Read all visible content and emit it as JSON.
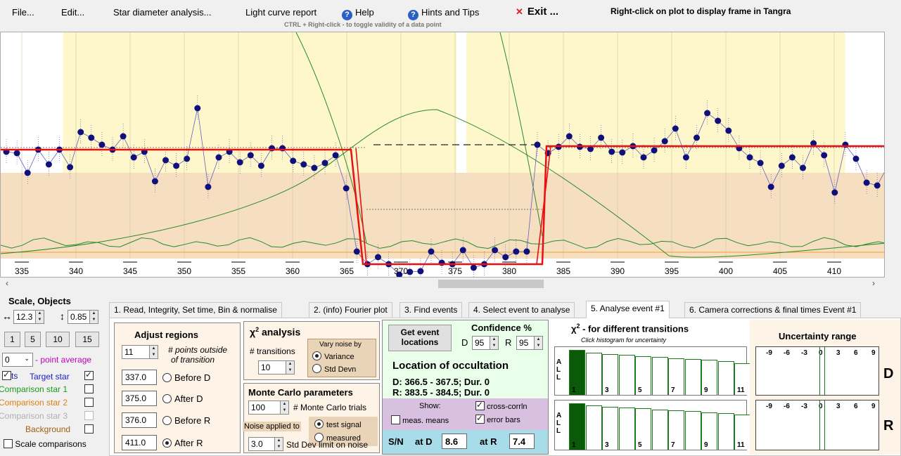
{
  "menu": {
    "file": "File...",
    "edit": "Edit...",
    "star_diameter": "Star diameter analysis...",
    "light_curve": "Light curve report",
    "help": "Help",
    "hints": "Hints and Tips",
    "exit_mark": "✕",
    "exit": "Exit ...",
    "right_click_note": "Right-click on plot to display frame in Tangra",
    "ctrl_note": "CTRL + Right-click  -  to toggle validity of a data point"
  },
  "plot": {
    "x_ticks": [
      "335",
      "340",
      "345",
      "350",
      "355",
      "360",
      "365",
      "370",
      "375",
      "380",
      "385",
      "390",
      "395",
      "400",
      "405",
      "410"
    ],
    "colors": {
      "highlight": "#fff7cc",
      "background_band": "#f5dfc0",
      "model": "#e81010",
      "points": "#10107a",
      "green": "#2a8a2a",
      "tan": "#f0a030"
    }
  },
  "scroll": {
    "left": "‹",
    "right": "›"
  },
  "left": {
    "title": "Scale,  Objects",
    "h_arrow": "↔",
    "v_arrow": "↕",
    "h_scale": "12.3",
    "v_scale": "0.85",
    "btn1": "1",
    "btn5": "5",
    "btn10": "10",
    "btn15": "15",
    "avg_value": "0",
    "avg_label": "- point average",
    "pts_label": "ts",
    "target": "Target star",
    "comp1": "Comparison star 1",
    "comp2": "Comparison star 2",
    "comp3": "Comparison star 3",
    "background": "Background",
    "scale_comp": "Scale comparisons"
  },
  "tabs": [
    "1.  Read, Integrity, Set time, Bin & normalise",
    "2. (info)  Fourier plot",
    "3. Find events",
    "4. Select event to analyse",
    "5. Analyse event #1",
    "6. Camera corrections & final times Event #1"
  ],
  "adjust": {
    "title": "Adjust regions",
    "points": "11",
    "points_label1": "# points outside",
    "points_label2": "of transition",
    "before_d_val": "337.0",
    "before_d": "Before D",
    "after_d_val": "375.0",
    "after_d": "After D",
    "before_r_val": "376.0",
    "before_r": "Before R",
    "after_r_val": "411.0",
    "after_r": "After R"
  },
  "chi": {
    "title_chi": "χ",
    "title_sup": "2",
    "title_rest": " analysis",
    "transitions_label": "# transitions",
    "transitions": "10",
    "vary_label1": "Vary noise by",
    "variance": "Variance",
    "std_devn": "Std Devn"
  },
  "mc": {
    "title": "Monte Carlo parameters",
    "trials": "100",
    "trials_label": "# Monte Carlo trials",
    "noise_label": "Noise applied to",
    "test_signal": "test signal",
    "measured": "measured",
    "std_limit": "3.0",
    "std_label": "Std Dev limit on noise"
  },
  "locate": {
    "button": "Get event locations",
    "confidence": "Confidence %",
    "d": "D",
    "d_val": "95",
    "r": "R",
    "r_val": "95",
    "location_title": "Location of occultation",
    "d_loc": "D: 366.5 - 367.5; Dur. 0",
    "r_loc": "R: 383.5 - 384.5; Dur. 0",
    "show": "Show:",
    "cross_corr": "cross-corrln",
    "meas_means": "meas. means",
    "error_bars": "error bars",
    "sn": "S/N",
    "at_d": "at D",
    "sn_d": "8.6",
    "at_r": "at R",
    "sn_r": "7.4"
  },
  "chi_hist": {
    "title_chi": "χ",
    "title_sup": "2",
    "title_rest": " - for different transitions",
    "subtitle": "Click histogram for uncertainty",
    "all": "A\nL\nL",
    "labels": [
      "1",
      "3",
      "5",
      "7",
      "9",
      "11"
    ]
  },
  "uncertainty": {
    "title": "Uncertainty range",
    "ticks": [
      "-9",
      "-6",
      "-3",
      "0",
      "3",
      "6",
      "9"
    ],
    "d": "D",
    "r": "R"
  }
}
